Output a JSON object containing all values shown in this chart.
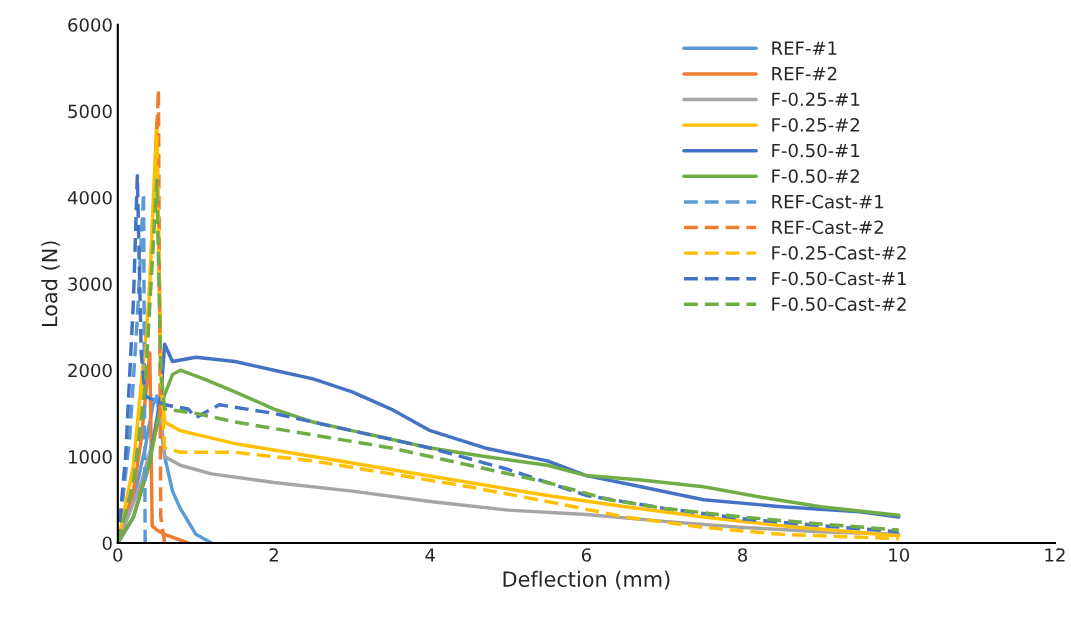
{
  "chart_data": {
    "type": "line",
    "xlabel": "Deflection (mm)",
    "ylabel": "Load (N)",
    "xlim": [
      0,
      12
    ],
    "ylim": [
      0,
      6000
    ],
    "xticks": [
      0,
      2,
      4,
      6,
      8,
      10,
      12
    ],
    "yticks": [
      0,
      1000,
      2000,
      3000,
      4000,
      5000,
      6000
    ],
    "grid": false,
    "legend": "top right",
    "marker": "none",
    "series": [
      {
        "name": "REF-#1",
        "color": "#5b9bd5",
        "line_style": "solid",
        "x": [
          0,
          0.2,
          0.35,
          0.45,
          0.5,
          0.6,
          0.7,
          0.8,
          1.0,
          1.2
        ],
        "values": [
          0,
          500,
          1100,
          1600,
          1700,
          1000,
          600,
          400,
          100,
          0
        ]
      },
      {
        "name": "REF-#2",
        "color": "#ed7d31",
        "line_style": "solid",
        "x": [
          0,
          0.2,
          0.3,
          0.41,
          0.44,
          0.5,
          0.6,
          0.75,
          0.9
        ],
        "values": [
          0,
          600,
          1200,
          2200,
          200,
          150,
          100,
          50,
          0
        ]
      },
      {
        "name": "F-0.25-#1",
        "color": "#a5a5a5",
        "line_style": "solid",
        "x": [
          0,
          0.3,
          0.55,
          0.6,
          0.8,
          1.2,
          2,
          3,
          4,
          5,
          6,
          7,
          8,
          9,
          10
        ],
        "values": [
          0,
          700,
          1500,
          1000,
          900,
          800,
          700,
          600,
          480,
          380,
          330,
          250,
          180,
          130,
          100
        ]
      },
      {
        "name": "F-0.25-#2",
        "color": "#ffc000",
        "line_style": "solid",
        "x": [
          0,
          0.2,
          0.4,
          0.5,
          0.55,
          0.6,
          0.8,
          1.5,
          2.5,
          3.5,
          4.5,
          5.5,
          6.5,
          7.5,
          8.5,
          9.5,
          10
        ],
        "values": [
          0,
          900,
          2800,
          4900,
          2000,
          1400,
          1300,
          1150,
          1000,
          850,
          700,
          550,
          420,
          300,
          200,
          120,
          80
        ]
      },
      {
        "name": "F-0.50-#1",
        "color": "#4472c4",
        "line_style": "solid",
        "x": [
          0,
          0.2,
          0.4,
          0.55,
          0.6,
          0.7,
          1.0,
          1.5,
          2,
          2.5,
          3,
          3.5,
          4,
          4.7,
          5.5,
          6,
          6.7,
          7.5,
          8.5,
          9.5,
          10
        ],
        "values": [
          0,
          300,
          900,
          1700,
          2300,
          2100,
          2150,
          2100,
          2000,
          1900,
          1750,
          1550,
          1300,
          1100,
          950,
          780,
          650,
          500,
          420,
          360,
          300
        ]
      },
      {
        "name": "F-0.50-#2",
        "color": "#70ad47",
        "line_style": "solid",
        "x": [
          0,
          0.2,
          0.4,
          0.55,
          0.7,
          0.8,
          1.1,
          1.5,
          2,
          2.5,
          3,
          3.5,
          4,
          4.7,
          5.5,
          6,
          6.7,
          7.5,
          8.3,
          9,
          10
        ],
        "values": [
          0,
          300,
          900,
          1600,
          1950,
          2000,
          1900,
          1750,
          1550,
          1400,
          1300,
          1200,
          1100,
          1000,
          900,
          780,
          730,
          650,
          520,
          420,
          320
        ]
      },
      {
        "name": "REF-Cast-#1",
        "color": "#5b9bd5",
        "line_style": "dashed",
        "x": [
          0,
          0.15,
          0.25,
          0.33,
          0.35
        ],
        "values": [
          0,
          1200,
          2600,
          4050,
          0
        ]
      },
      {
        "name": "REF-Cast-#2",
        "color": "#ed7d31",
        "line_style": "dashed",
        "x": [
          0,
          0.2,
          0.35,
          0.45,
          0.52,
          0.55,
          0.6
        ],
        "values": [
          0,
          800,
          1900,
          3500,
          5250,
          300,
          0
        ]
      },
      {
        "name": "F-0.25-Cast-#2",
        "color": "#ffc000",
        "line_style": "dashed",
        "x": [
          0,
          0.2,
          0.35,
          0.5,
          0.55,
          0.6,
          0.8,
          1.5,
          2.5,
          3.5,
          4.5,
          5.5,
          6.5,
          7.5,
          8.5,
          10
        ],
        "values": [
          0,
          800,
          2000,
          4700,
          2000,
          1100,
          1050,
          1050,
          950,
          800,
          650,
          480,
          300,
          180,
          100,
          50
        ]
      },
      {
        "name": "F-0.50-Cast-#1",
        "color": "#4472c4",
        "line_style": "dashed",
        "x": [
          0,
          0.1,
          0.2,
          0.25,
          0.3,
          0.35,
          0.6,
          0.9,
          1.0,
          1.3,
          2,
          3,
          4,
          5,
          6,
          7,
          8,
          9,
          10
        ],
        "values": [
          0,
          1000,
          2800,
          4250,
          2200,
          1700,
          1600,
          1550,
          1450,
          1600,
          1500,
          1300,
          1100,
          850,
          550,
          400,
          280,
          200,
          130
        ]
      },
      {
        "name": "F-0.50-Cast-#2",
        "color": "#70ad47",
        "line_style": "dashed",
        "x": [
          0,
          0.2,
          0.35,
          0.5,
          0.55,
          0.6,
          1.0,
          1.5,
          2.5,
          3.5,
          4.5,
          5.5,
          6.3,
          7,
          8,
          9,
          10
        ],
        "values": [
          0,
          700,
          1800,
          4200,
          2000,
          1550,
          1500,
          1400,
          1250,
          1100,
          900,
          700,
          500,
          400,
          300,
          220,
          150
        ]
      }
    ]
  }
}
